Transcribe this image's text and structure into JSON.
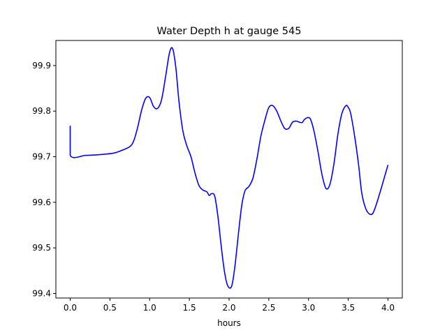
{
  "chart_data": {
    "type": "line",
    "title": "Water Depth h at gauge 545",
    "xlabel": "hours",
    "ylabel": "",
    "xlim": [
      -0.18,
      4.18
    ],
    "ylim": [
      99.39,
      99.955
    ],
    "xticks": [
      0.0,
      0.5,
      1.0,
      1.5,
      2.0,
      2.5,
      3.0,
      3.5,
      4.0
    ],
    "xtick_labels": [
      "0.0",
      "0.5",
      "1.0",
      "1.5",
      "2.0",
      "2.5",
      "3.0",
      "3.5",
      "4.0"
    ],
    "yticks": [
      99.4,
      99.5,
      99.6,
      99.7,
      99.8,
      99.9
    ],
    "ytick_labels": [
      "99.4",
      "99.5",
      "99.6",
      "99.7",
      "99.8",
      "99.9"
    ],
    "grid": false,
    "series": [
      {
        "color": "#0000ff",
        "x": [
          0.0,
          0.0,
          0.2,
          0.4,
          0.55,
          0.65,
          0.75,
          0.8,
          0.85,
          0.9,
          0.95,
          1.0,
          1.05,
          1.1,
          1.15,
          1.2,
          1.25,
          1.29,
          1.33,
          1.37,
          1.42,
          1.47,
          1.52,
          1.57,
          1.62,
          1.67,
          1.72,
          1.75,
          1.78,
          1.82,
          1.86,
          1.9,
          1.94,
          1.98,
          2.03,
          2.07,
          2.12,
          2.16,
          2.2,
          2.25,
          2.3,
          2.35,
          2.4,
          2.45,
          2.5,
          2.55,
          2.6,
          2.65,
          2.7,
          2.75,
          2.8,
          2.85,
          2.88,
          2.92,
          2.95,
          3.0,
          3.03,
          3.07,
          3.12,
          3.17,
          3.22,
          3.27,
          3.32,
          3.37,
          3.42,
          3.47,
          3.5,
          3.53,
          3.58,
          3.63,
          3.67,
          3.72,
          3.77,
          3.81,
          3.85,
          3.9,
          3.95,
          4.0
        ],
        "y": [
          99.768,
          99.703,
          99.703,
          99.705,
          99.708,
          99.714,
          99.722,
          99.735,
          99.765,
          99.803,
          99.828,
          99.83,
          99.81,
          99.806,
          99.825,
          99.875,
          99.928,
          99.937,
          99.895,
          99.82,
          99.755,
          99.723,
          99.7,
          99.665,
          99.637,
          99.627,
          99.623,
          99.615,
          99.619,
          99.613,
          99.568,
          99.505,
          99.45,
          99.418,
          99.415,
          99.455,
          99.535,
          99.594,
          99.625,
          99.635,
          99.653,
          99.695,
          99.745,
          99.78,
          99.808,
          99.812,
          99.8,
          99.779,
          99.762,
          99.762,
          99.776,
          99.778,
          99.776,
          99.775,
          99.782,
          99.786,
          99.78,
          99.755,
          99.71,
          99.66,
          99.63,
          99.64,
          99.685,
          99.75,
          99.795,
          99.812,
          99.808,
          99.795,
          99.745,
          99.682,
          99.62,
          99.586,
          99.574,
          99.576,
          99.594,
          99.622,
          99.652,
          99.682
        ]
      }
    ]
  }
}
